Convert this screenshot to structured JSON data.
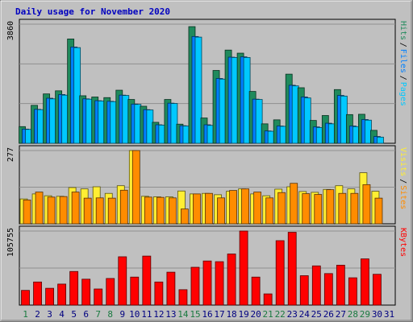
{
  "chart_data": {
    "type": "bar",
    "title": "Daily usage for November 2020",
    "colors": {
      "background": "#c0c0c0",
      "plot_bg": "#c0c0c0",
      "grid": "#8f8f8f",
      "title": "#0000c0",
      "hits": "#1f8a5c",
      "files": "#0080ff",
      "pages": "#00c8ff",
      "visits": "#ffee33",
      "sites": "#ff8c00",
      "kbytes": "#ff0000",
      "weekday": "#000080",
      "weekend": "#1a7a40"
    },
    "x": [
      "1",
      "2",
      "3",
      "4",
      "5",
      "6",
      "7",
      "8",
      "9",
      "10",
      "11",
      "12",
      "13",
      "14",
      "15",
      "16",
      "17",
      "18",
      "19",
      "20",
      "21",
      "22",
      "23",
      "24",
      "25",
      "26",
      "27",
      "28",
      "29",
      "30",
      "31"
    ],
    "weekend_days": [
      1,
      7,
      8,
      14,
      15,
      21,
      22,
      28,
      29
    ],
    "panels": [
      {
        "id": "top",
        "ymax_label": "3860",
        "ymax": 3860,
        "legend": [
          {
            "text": "Hits",
            "color_key": "hits"
          },
          {
            "text": "Files",
            "color_key": "files"
          },
          {
            "text": "Pages",
            "color_key": "pages"
          }
        ],
        "series": [
          {
            "name": "Hits",
            "color_key": "hits",
            "values": [
              540,
              1230,
              1600,
              1700,
              3380,
              1540,
              1500,
              1480,
              1720,
              1420,
              1200,
              680,
              1420,
              620,
              3780,
              820,
              2360,
              3020,
              2920,
              1680,
              630,
              760,
              2240,
              1800,
              740,
              900,
              1740,
              930,
              940,
              420,
              0
            ]
          },
          {
            "name": "Files",
            "color_key": "files",
            "values": [
              460,
              1100,
              1460,
              1580,
              3120,
              1440,
              1380,
              1360,
              1560,
              1270,
              1090,
              600,
              1300,
              570,
              3460,
              600,
              2100,
              2790,
              2800,
              1430,
              400,
              560,
              1880,
              1500,
              530,
              650,
              1550,
              560,
              770,
              220,
              0
            ]
          },
          {
            "name": "Pages",
            "color_key": "pages",
            "values": [
              450,
              1090,
              1440,
              1560,
              3100,
              1430,
              1370,
              1350,
              1550,
              1260,
              1080,
              590,
              1290,
              560,
              3440,
              580,
              2080,
              2780,
              2780,
              1420,
              390,
              550,
              1860,
              1470,
              510,
              630,
              1530,
              540,
              750,
              200,
              0
            ]
          }
        ]
      },
      {
        "id": "middle",
        "ymax_label": "277",
        "ymax": 277,
        "legend": [
          {
            "text": "Visits",
            "color_key": "visits"
          },
          {
            "text": "Sites",
            "color_key": "sites"
          }
        ],
        "series": [
          {
            "name": "Visits",
            "color_key": "visits",
            "values": [
              94,
              113,
              106,
              104,
              137,
              132,
              140,
              115,
              144,
              277,
              104,
              102,
              102,
              124,
              113,
              115,
              110,
              123,
              132,
              113,
              106,
              131,
              140,
              122,
              119,
              130,
              144,
              132,
              193,
              123,
              0
            ]
          },
          {
            "name": "Sites",
            "color_key": "sites",
            "values": [
              90,
              120,
              101,
              103,
              120,
              97,
              98,
              97,
              127,
              277,
              101,
              100,
              98,
              56,
              113,
              115,
              98,
              126,
              132,
              120,
              98,
              118,
              153,
              114,
              111,
              129,
              115,
              115,
              148,
              97,
              0
            ]
          }
        ]
      },
      {
        "id": "bottom",
        "ymax_label": "105755",
        "ymax": 105755,
        "legend": [
          {
            "text": "KBytes",
            "color_key": "kbytes"
          }
        ],
        "series": [
          {
            "name": "KBytes",
            "color_key": "kbytes",
            "values": [
              21000,
              33000,
              24000,
              30000,
              48000,
              37000,
              23000,
              38000,
              69000,
              40000,
              70000,
              33000,
              47000,
              22000,
              54000,
              63000,
              62000,
              73000,
              105755,
              40000,
              16000,
              92000,
              104000,
              42000,
              56000,
              45000,
              57000,
              39000,
              66000,
              44000,
              0
            ]
          }
        ]
      }
    ]
  }
}
